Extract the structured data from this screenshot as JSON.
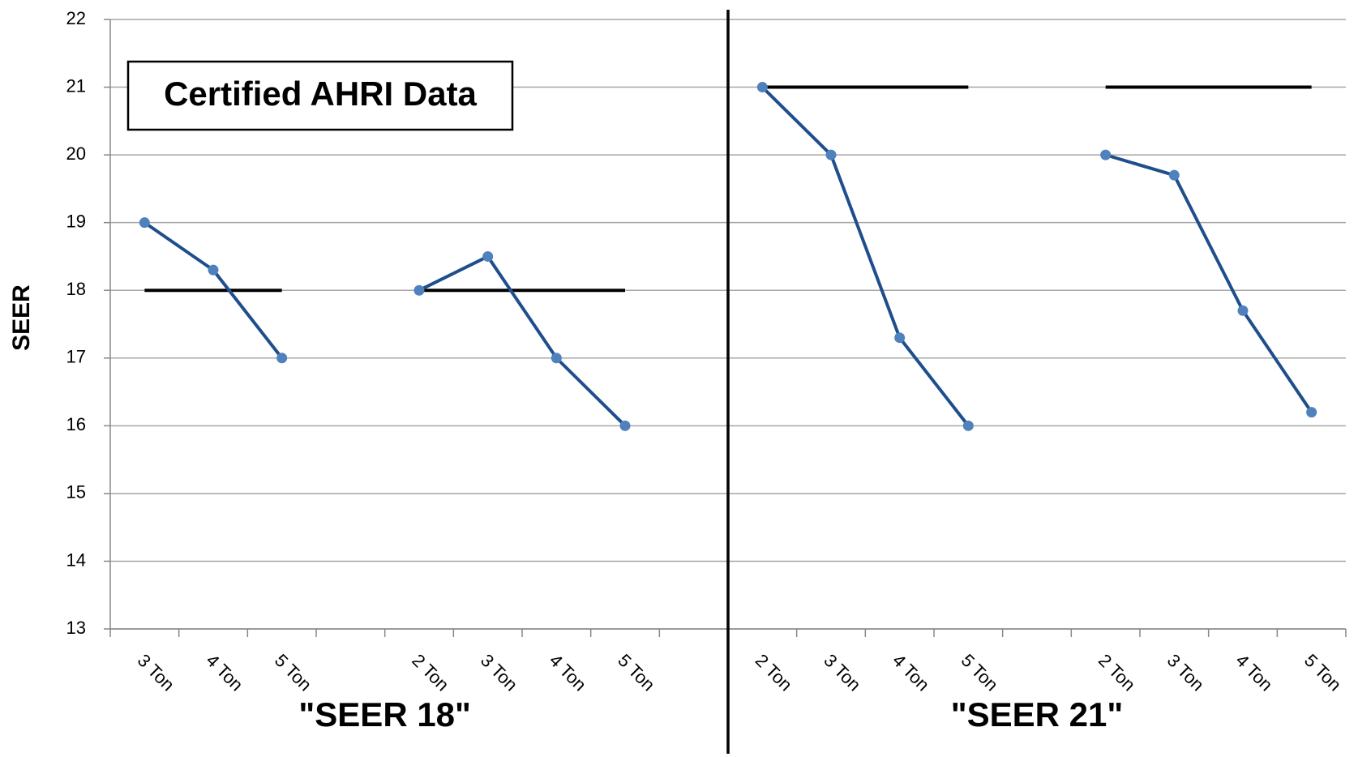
{
  "chart_data": {
    "type": "line",
    "ylabel": "SEER",
    "annotation": "Certified AHRI Data",
    "group_labels": [
      "\"SEER 18\"",
      "\"SEER 21\""
    ],
    "categories": [
      "3 Ton",
      "4 Ton",
      "5 Ton",
      null,
      "2 Ton",
      "3 Ton",
      "4 Ton",
      "5 Ton",
      null,
      "2 Ton",
      "3 Ton",
      "4 Ton",
      "5 Ton",
      null,
      "2 Ton",
      "3 Ton",
      "4 Ton",
      "5 Ton"
    ],
    "series": [
      {
        "color": "#1f4e8c",
        "marker_color": "#4f81bd",
        "markers": true,
        "values": [
          19,
          18.3,
          17,
          null,
          18,
          18.5,
          17,
          16,
          null,
          21,
          20,
          17.3,
          16,
          null,
          20,
          19.7,
          17.7,
          16.2
        ]
      },
      {
        "color": "#000000",
        "markers": false,
        "values": [
          18,
          18,
          18,
          null,
          18,
          18,
          18,
          18,
          null,
          21,
          21,
          21,
          21,
          null,
          21,
          21,
          21,
          21
        ]
      }
    ],
    "ylim": [
      13,
      22
    ],
    "yticks": [
      13,
      14,
      15,
      16,
      17,
      18,
      19,
      20,
      21,
      22
    ],
    "grid": true
  }
}
